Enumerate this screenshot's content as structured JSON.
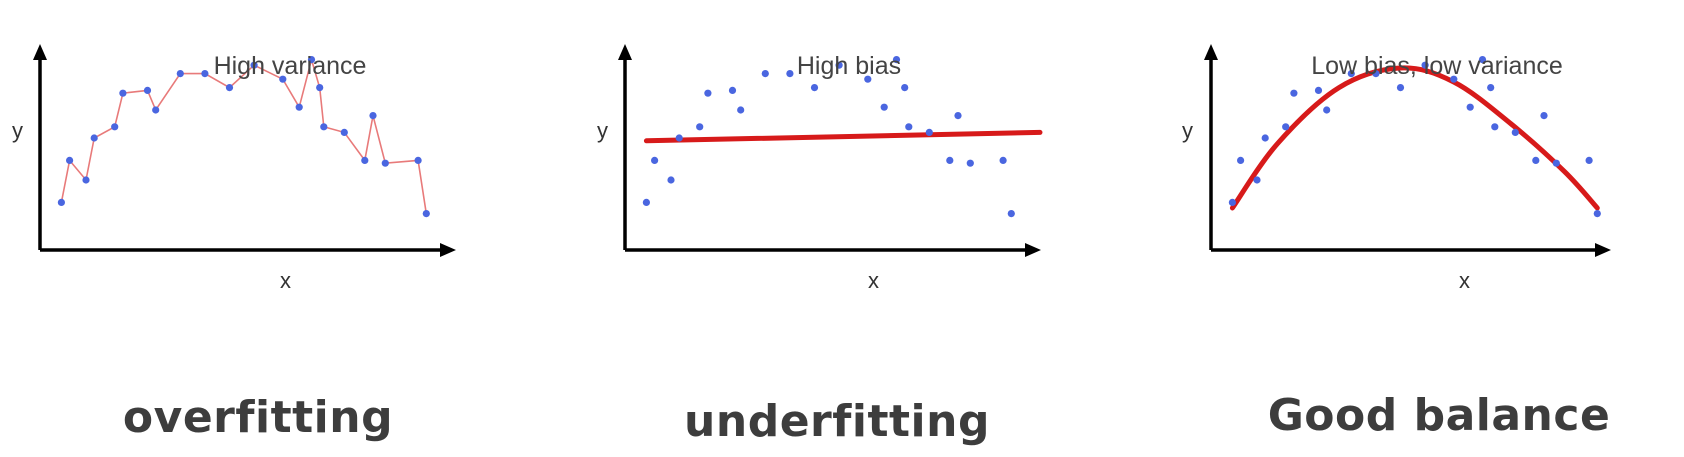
{
  "chart_data": [
    {
      "type": "scatter",
      "title": "High variance",
      "xlabel": "x",
      "ylabel": "y",
      "caption": "overfitting",
      "fit": "interpolating-line",
      "fit_color": "#e87a7a",
      "point_color": "#4a66e0",
      "xlim": [
        0,
        100
      ],
      "ylim": [
        0,
        100
      ],
      "grid": false,
      "points": [
        {
          "x": 4,
          "y": 17
        },
        {
          "x": 6,
          "y": 32
        },
        {
          "x": 10,
          "y": 25
        },
        {
          "x": 12,
          "y": 40
        },
        {
          "x": 17,
          "y": 44
        },
        {
          "x": 19,
          "y": 56
        },
        {
          "x": 25,
          "y": 57
        },
        {
          "x": 27,
          "y": 50
        },
        {
          "x": 33,
          "y": 63
        },
        {
          "x": 39,
          "y": 63
        },
        {
          "x": 45,
          "y": 58
        },
        {
          "x": 51,
          "y": 66
        },
        {
          "x": 58,
          "y": 61
        },
        {
          "x": 62,
          "y": 51
        },
        {
          "x": 65,
          "y": 68
        },
        {
          "x": 67,
          "y": 58
        },
        {
          "x": 68,
          "y": 44
        },
        {
          "x": 73,
          "y": 42
        },
        {
          "x": 78,
          "y": 32
        },
        {
          "x": 80,
          "y": 48
        },
        {
          "x": 83,
          "y": 31
        },
        {
          "x": 91,
          "y": 32
        },
        {
          "x": 93,
          "y": 13
        }
      ]
    },
    {
      "type": "scatter",
      "title": "High bias",
      "xlabel": "x",
      "ylabel": "y",
      "caption": "underfitting",
      "fit": "linear",
      "fit_line": [
        {
          "x": 4,
          "y": 39
        },
        {
          "x": 100,
          "y": 42
        }
      ],
      "fit_color": "#d71a1a",
      "point_color": "#4a66e0",
      "xlim": [
        0,
        100
      ],
      "ylim": [
        0,
        100
      ],
      "grid": false,
      "points": [
        {
          "x": 4,
          "y": 17
        },
        {
          "x": 6,
          "y": 32
        },
        {
          "x": 10,
          "y": 25
        },
        {
          "x": 12,
          "y": 40
        },
        {
          "x": 17,
          "y": 44
        },
        {
          "x": 19,
          "y": 56
        },
        {
          "x": 25,
          "y": 57
        },
        {
          "x": 27,
          "y": 50
        },
        {
          "x": 33,
          "y": 63
        },
        {
          "x": 39,
          "y": 63
        },
        {
          "x": 45,
          "y": 58
        },
        {
          "x": 51,
          "y": 66
        },
        {
          "x": 58,
          "y": 61
        },
        {
          "x": 62,
          "y": 51
        },
        {
          "x": 65,
          "y": 68
        },
        {
          "x": 67,
          "y": 58
        },
        {
          "x": 68,
          "y": 44
        },
        {
          "x": 73,
          "y": 42
        },
        {
          "x": 78,
          "y": 32
        },
        {
          "x": 80,
          "y": 48
        },
        {
          "x": 83,
          "y": 31
        },
        {
          "x": 91,
          "y": 32
        },
        {
          "x": 93,
          "y": 13
        }
      ]
    },
    {
      "type": "scatter",
      "title": "Low bias, low variance",
      "xlabel": "x",
      "ylabel": "y",
      "caption": "Good balance",
      "fit": "quadratic",
      "fit_curve": [
        {
          "x": 4,
          "y": 15
        },
        {
          "x": 15,
          "y": 38
        },
        {
          "x": 30,
          "y": 58
        },
        {
          "x": 45,
          "y": 65
        },
        {
          "x": 58,
          "y": 60
        },
        {
          "x": 72,
          "y": 45
        },
        {
          "x": 85,
          "y": 28
        },
        {
          "x": 93,
          "y": 15
        }
      ],
      "fit_color": "#d71a1a",
      "point_color": "#4a66e0",
      "xlim": [
        0,
        100
      ],
      "ylim": [
        0,
        100
      ],
      "grid": false,
      "points": [
        {
          "x": 4,
          "y": 17
        },
        {
          "x": 6,
          "y": 32
        },
        {
          "x": 10,
          "y": 25
        },
        {
          "x": 12,
          "y": 40
        },
        {
          "x": 17,
          "y": 44
        },
        {
          "x": 19,
          "y": 56
        },
        {
          "x": 25,
          "y": 57
        },
        {
          "x": 27,
          "y": 50
        },
        {
          "x": 33,
          "y": 63
        },
        {
          "x": 39,
          "y": 63
        },
        {
          "x": 45,
          "y": 58
        },
        {
          "x": 51,
          "y": 66
        },
        {
          "x": 58,
          "y": 61
        },
        {
          "x": 62,
          "y": 51
        },
        {
          "x": 65,
          "y": 68
        },
        {
          "x": 67,
          "y": 58
        },
        {
          "x": 68,
          "y": 44
        },
        {
          "x": 73,
          "y": 42
        },
        {
          "x": 78,
          "y": 32
        },
        {
          "x": 80,
          "y": 48
        },
        {
          "x": 83,
          "y": 31
        },
        {
          "x": 91,
          "y": 32
        },
        {
          "x": 93,
          "y": 13
        }
      ]
    }
  ]
}
